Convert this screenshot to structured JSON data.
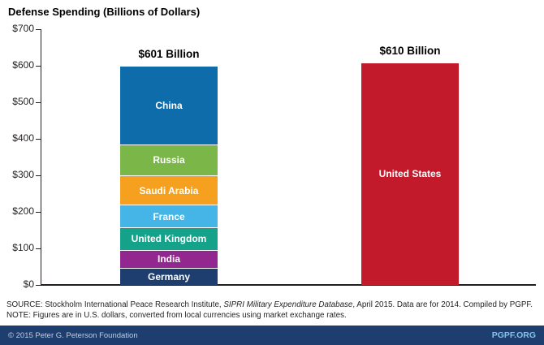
{
  "title": "Defense Spending (Billions of Dollars)",
  "chart_data": {
    "type": "bar",
    "subtype": "stacked-bar-comparison",
    "ylim": [
      0,
      700
    ],
    "ytick_interval": 100,
    "ytick_labels": [
      "$0",
      "$100",
      "$200",
      "$300",
      "$400",
      "$500",
      "$600",
      "$700"
    ],
    "grid": false,
    "bars": [
      {
        "name": "next-seven-countries",
        "total_label": "$601 Billion",
        "total_value": 601,
        "segments": [
          {
            "label": "Germany",
            "value": 46.5,
            "color": "#1d3e6e"
          },
          {
            "label": "India",
            "value": 50.0,
            "color": "#92278f"
          },
          {
            "label": "United Kingdom",
            "value": 60.5,
            "color": "#14a28b"
          },
          {
            "label": "France",
            "value": 62.3,
            "color": "#45b5e8"
          },
          {
            "label": "Saudi Arabia",
            "value": 80.8,
            "color": "#f6a01f"
          },
          {
            "label": "Russia",
            "value": 84.5,
            "color": "#7ab648"
          },
          {
            "label": "China",
            "value": 216.4,
            "color": "#0e6caa"
          }
        ]
      },
      {
        "name": "united-states",
        "total_label": "$610 Billion",
        "total_value": 610,
        "segments": [
          {
            "label": "United States",
            "value": 610,
            "color": "#c2192b"
          }
        ]
      }
    ]
  },
  "source": {
    "prefix": "SOURCE: Stockholm International Peace Research Institute, ",
    "italic": "SIPRI Military Expenditure Database",
    "suffix": ", April 2015. Data are for 2014. Compiled by PGPF.",
    "note": "NOTE: Figures are in U.S. dollars, converted from local currencies using market exchange rates."
  },
  "footer": {
    "copyright": "© 2015 Peter G. Peterson Foundation",
    "site": "PGPF.ORG"
  }
}
